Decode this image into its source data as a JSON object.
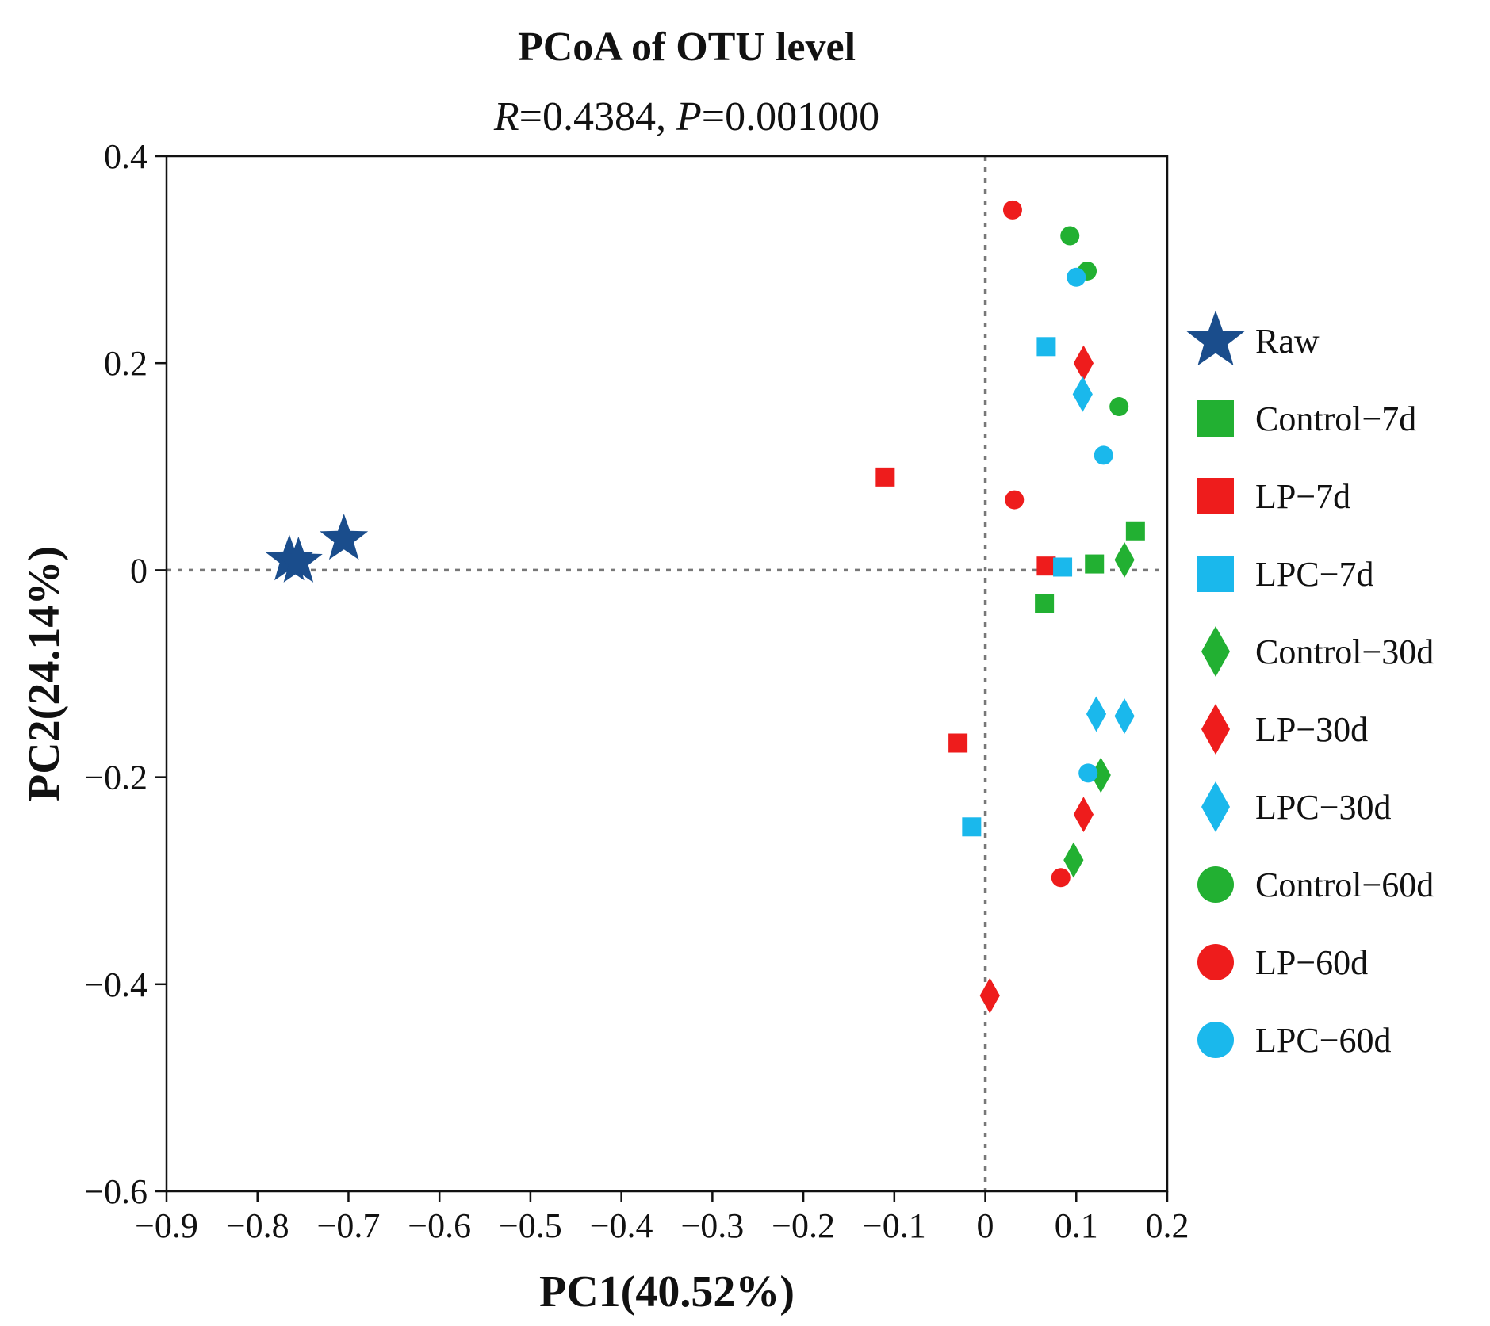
{
  "chart_data": {
    "type": "scatter",
    "title": "PCoA of OTU level",
    "subtitle": {
      "r_label": "R",
      "r_text": "=0.4384, ",
      "p_label": "P",
      "p_text": "=0.001000"
    },
    "xlabel": "PC1(40.52%)",
    "ylabel": "PC2(24.14%)",
    "xlim": [
      -0.9,
      0.2
    ],
    "ylim": [
      -0.6,
      0.4
    ],
    "xticks": [
      -0.9,
      -0.8,
      -0.7,
      -0.6,
      -0.5,
      -0.4,
      -0.3,
      -0.2,
      -0.1,
      0,
      0.1,
      0.2
    ],
    "xtick_labels": [
      "−0.9",
      "−0.8",
      "−0.7",
      "−0.6",
      "−0.5",
      "−0.4",
      "−0.3",
      "−0.2",
      "−0.1",
      "0",
      "0.1",
      "0.2"
    ],
    "yticks": [
      0.4,
      0.2,
      0,
      -0.2,
      -0.4,
      -0.6
    ],
    "ytick_labels": [
      "0.4",
      "0.2",
      "0",
      "−0.2",
      "−0.4",
      "−0.6"
    ],
    "reference_lines": {
      "x": 0,
      "y": 0,
      "style": "dotted"
    },
    "legend_position": "right",
    "series": [
      {
        "name": "Raw",
        "marker": "star",
        "color": "#1a4d8c",
        "points": [
          [
            -0.765,
            0.01
          ],
          [
            -0.755,
            0.008
          ],
          [
            -0.705,
            0.03
          ]
        ]
      },
      {
        "name": "Control−7d",
        "marker": "square",
        "color": "#22b032",
        "points": [
          [
            0.12,
            0.006
          ],
          [
            0.065,
            -0.032
          ],
          [
            0.165,
            0.038
          ]
        ]
      },
      {
        "name": "LP−7d",
        "marker": "square",
        "color": "#ee1c1c",
        "points": [
          [
            -0.11,
            0.09
          ],
          [
            0.067,
            0.004
          ],
          [
            -0.03,
            -0.167
          ]
        ]
      },
      {
        "name": "LPC−7d",
        "marker": "square",
        "color": "#1ab8ec",
        "points": [
          [
            0.067,
            0.216
          ],
          [
            0.085,
            0.003
          ],
          [
            -0.015,
            -0.248
          ]
        ]
      },
      {
        "name": "Control−30d",
        "marker": "diamond",
        "color": "#22b032",
        "points": [
          [
            0.153,
            0.01
          ],
          [
            0.127,
            -0.198
          ],
          [
            0.097,
            -0.28
          ]
        ]
      },
      {
        "name": "LP−30d",
        "marker": "diamond",
        "color": "#ee1c1c",
        "points": [
          [
            0.108,
            0.2
          ],
          [
            0.108,
            -0.236
          ],
          [
            0.005,
            -0.411
          ]
        ]
      },
      {
        "name": "LPC−30d",
        "marker": "diamond",
        "color": "#1ab8ec",
        "points": [
          [
            0.107,
            0.17
          ],
          [
            0.122,
            -0.139
          ],
          [
            0.153,
            -0.141
          ]
        ]
      },
      {
        "name": "Control−60d",
        "marker": "circle",
        "color": "#22b032",
        "points": [
          [
            0.093,
            0.323
          ],
          [
            0.112,
            0.289
          ],
          [
            0.147,
            0.158
          ]
        ]
      },
      {
        "name": "LP−60d",
        "marker": "circle",
        "color": "#ee1c1c",
        "points": [
          [
            0.03,
            0.348
          ],
          [
            0.032,
            0.068
          ],
          [
            0.083,
            -0.297
          ]
        ]
      },
      {
        "name": "LPC−60d",
        "marker": "circle",
        "color": "#1ab8ec",
        "points": [
          [
            0.1,
            0.283
          ],
          [
            0.13,
            0.111
          ],
          [
            0.113,
            -0.196
          ]
        ]
      }
    ]
  }
}
